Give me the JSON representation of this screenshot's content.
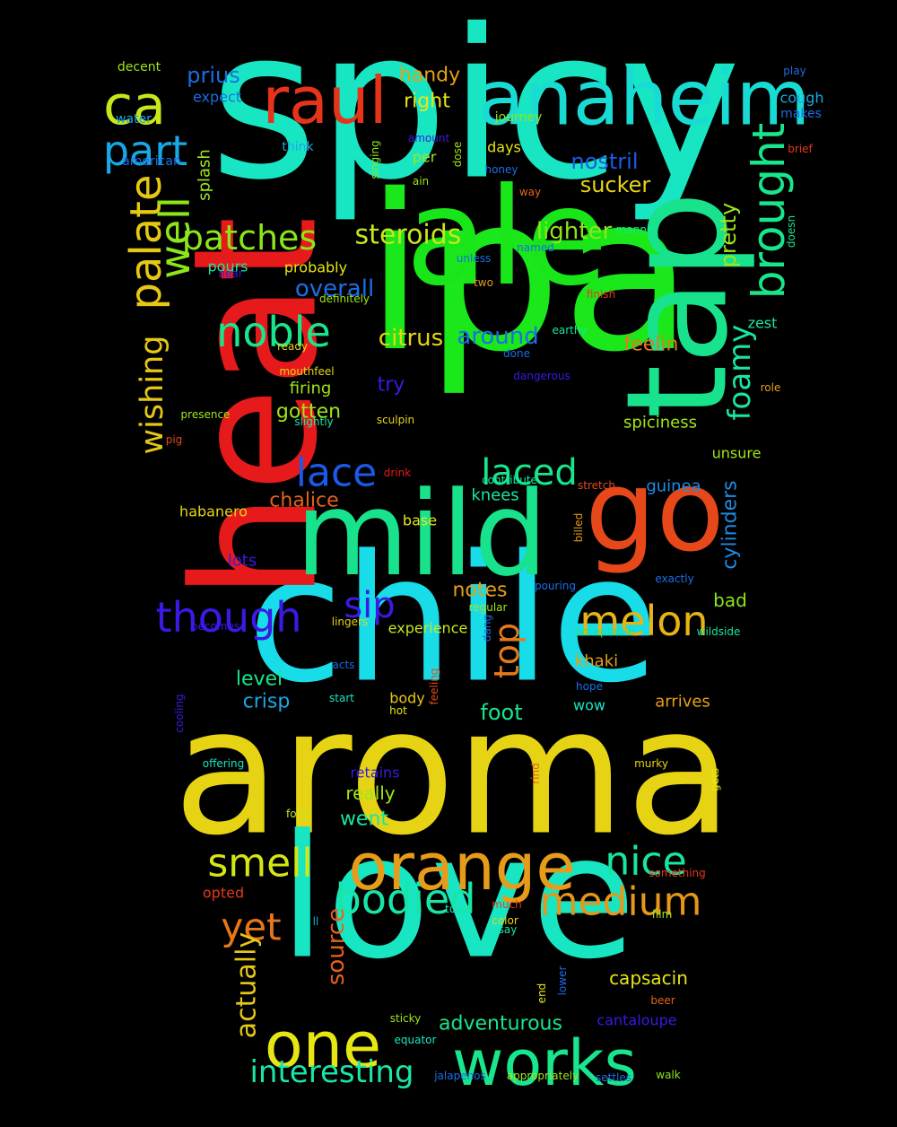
{
  "words": [
    {
      "text": "spicy",
      "color": "#18e6c3"
    },
    {
      "text": "ipa",
      "color": "#1ae81a"
    },
    {
      "text": "chile",
      "color": "#18dce8"
    },
    {
      "text": "aroma",
      "color": "#e6d414"
    },
    {
      "text": "love",
      "color": "#18e6c3"
    },
    {
      "text": "heat",
      "color": "#e61a1a"
    },
    {
      "text": "ale",
      "color": "#18e618"
    },
    {
      "text": "tap",
      "color": "#18e28c"
    },
    {
      "text": "mild",
      "color": "#18e28c"
    },
    {
      "text": "go",
      "color": "#e6481a"
    },
    {
      "text": "anaheim",
      "color": "#18dcd4"
    },
    {
      "text": "raul",
      "color": "#e6341a"
    },
    {
      "text": "ca",
      "color": "#c8e61a"
    },
    {
      "text": "orange",
      "color": "#e69c1a"
    },
    {
      "text": "works",
      "color": "#18e68c"
    },
    {
      "text": "one",
      "color": "#e6e614"
    },
    {
      "text": "brought",
      "color": "#18e68c"
    },
    {
      "text": "palate",
      "color": "#e6c814"
    },
    {
      "text": "well",
      "color": "#8ce618"
    },
    {
      "text": "part",
      "color": "#18a8e6"
    },
    {
      "text": "noble",
      "color": "#18e68c"
    },
    {
      "text": "though",
      "color": "#3a1ae6"
    },
    {
      "text": "melon",
      "color": "#e6b414"
    },
    {
      "text": "bodied",
      "color": "#18e6a8"
    },
    {
      "text": "medium",
      "color": "#e6961a"
    },
    {
      "text": "smell",
      "color": "#d4e614"
    },
    {
      "text": "nice",
      "color": "#18e6a0"
    },
    {
      "text": "lace",
      "color": "#1a5ae6"
    },
    {
      "text": "laced",
      "color": "#18e68c"
    },
    {
      "text": "patches",
      "color": "#8ce618"
    },
    {
      "text": "wishing",
      "color": "#e6c814"
    },
    {
      "text": "foamy",
      "color": "#18e6a0"
    },
    {
      "text": "sip",
      "color": "#3a1ae6"
    },
    {
      "text": "top",
      "color": "#e67a1a"
    },
    {
      "text": "interesting",
      "color": "#18e6a8"
    },
    {
      "text": "yet",
      "color": "#e6781a"
    },
    {
      "text": "steroids",
      "color": "#c8e61a"
    },
    {
      "text": "actually",
      "color": "#e6c814"
    },
    {
      "text": "source",
      "color": "#e6621a"
    },
    {
      "text": "lighter",
      "color": "#8ce618"
    },
    {
      "text": "citrus",
      "color": "#e6d414"
    },
    {
      "text": "around",
      "color": "#1a6ee6"
    },
    {
      "text": "overall",
      "color": "#1a6ee6"
    },
    {
      "text": "sucker",
      "color": "#e6d414"
    },
    {
      "text": "nostril",
      "color": "#1a5ae6"
    },
    {
      "text": "pretty",
      "color": "#a0e618"
    },
    {
      "text": "cylinders",
      "color": "#1a8ce6"
    },
    {
      "text": "adventurous",
      "color": "#18e68c"
    },
    {
      "text": "capsacin",
      "color": "#e6e614"
    },
    {
      "text": "feelin",
      "color": "#e6781a"
    },
    {
      "text": "chalice",
      "color": "#e6621a"
    },
    {
      "text": "prius",
      "color": "#1a6ee6"
    },
    {
      "text": "handy",
      "color": "#e6a014"
    },
    {
      "text": "right",
      "color": "#e6e614"
    },
    {
      "text": "notes",
      "color": "#e6a014"
    },
    {
      "text": "gotten",
      "color": "#a0e618"
    },
    {
      "text": "went",
      "color": "#18e6a0"
    },
    {
      "text": "foot",
      "color": "#18e68c"
    },
    {
      "text": "crisp",
      "color": "#18a8e6"
    },
    {
      "text": "level",
      "color": "#18e68c"
    },
    {
      "text": "spiciness",
      "color": "#a0e618"
    },
    {
      "text": "try",
      "color": "#3a1ae6"
    },
    {
      "text": "really",
      "color": "#a0e618"
    },
    {
      "text": "arrives",
      "color": "#e6a014"
    },
    {
      "text": "bad",
      "color": "#8ce618"
    },
    {
      "text": "guinea",
      "color": "#1a8ce6"
    },
    {
      "text": "zest",
      "color": "#18e6a0"
    },
    {
      "text": "unsure",
      "color": "#a0e618"
    },
    {
      "text": "cough",
      "color": "#18a8e6"
    },
    {
      "text": "splash",
      "color": "#a0e618"
    },
    {
      "text": "knees",
      "color": "#18e6a0"
    },
    {
      "text": "khaki",
      "color": "#e6a014"
    },
    {
      "text": "lots",
      "color": "#3a1ae6"
    },
    {
      "text": "firing",
      "color": "#a0e618"
    },
    {
      "text": "base",
      "color": "#e6e614"
    },
    {
      "text": "cantaloupe",
      "color": "#3a1ae6"
    },
    {
      "text": "body",
      "color": "#e6c814"
    },
    {
      "text": "retains",
      "color": "#3a1ae6"
    },
    {
      "text": "per",
      "color": "#a0e618"
    },
    {
      "text": "days",
      "color": "#e6e614"
    },
    {
      "text": "experience",
      "color": "#c8e61a"
    },
    {
      "text": "expect",
      "color": "#1a6ee6"
    },
    {
      "text": "pours",
      "color": "#18e6a0"
    },
    {
      "text": "probably",
      "color": "#e6e614"
    },
    {
      "text": "habanero",
      "color": "#e6d414"
    },
    {
      "text": "opted",
      "color": "#e63a1a"
    },
    {
      "text": "wow",
      "color": "#18e6c3"
    },
    {
      "text": "makes",
      "color": "#1a6ee6"
    },
    {
      "text": "decent",
      "color": "#a0e618"
    },
    {
      "text": "water",
      "color": "#18a8e6"
    },
    {
      "text": "american",
      "color": "#1a6ee6"
    },
    {
      "text": "think",
      "color": "#18a8e6"
    },
    {
      "text": "journey",
      "color": "#8ce618"
    },
    {
      "text": "play",
      "color": "#1a6ee6"
    },
    {
      "text": "brief",
      "color": "#e63a1a"
    },
    {
      "text": "amount",
      "color": "#3a1ae6"
    },
    {
      "text": "honey",
      "color": "#1a6ee6"
    },
    {
      "text": "ain",
      "color": "#a0e618"
    },
    {
      "text": "way",
      "color": "#e6621a"
    },
    {
      "text": "manner",
      "color": "#18e68c"
    },
    {
      "text": "doesn",
      "color": "#18e68c"
    },
    {
      "text": "named",
      "color": "#1a6ee6"
    },
    {
      "text": "unless",
      "color": "#1a6ee6"
    },
    {
      "text": "near",
      "color": "#3a1ae6"
    },
    {
      "text": "two",
      "color": "#e69c1a"
    },
    {
      "text": "finish",
      "color": "#e63a1a"
    },
    {
      "text": "definitely",
      "color": "#a0e618"
    },
    {
      "text": "earthy",
      "color": "#18e6a0"
    },
    {
      "text": "ready",
      "color": "#e6d414"
    },
    {
      "text": "done",
      "color": "#1a6ee6"
    },
    {
      "text": "mouthfeel",
      "color": "#e6d414"
    },
    {
      "text": "dangerous",
      "color": "#3a1ae6"
    },
    {
      "text": "role",
      "color": "#e69c1a"
    },
    {
      "text": "presence",
      "color": "#a0e618"
    },
    {
      "text": "slightly",
      "color": "#18e6a0"
    },
    {
      "text": "sculpin",
      "color": "#e6d414"
    },
    {
      "text": "pig",
      "color": "#e6481a"
    },
    {
      "text": "drink",
      "color": "#e61a1a"
    },
    {
      "text": "contribute",
      "color": "#18e6a0"
    },
    {
      "text": "stretch",
      "color": "#e6481a"
    },
    {
      "text": "exactly",
      "color": "#1a6ee6"
    },
    {
      "text": "pouring",
      "color": "#1a6ee6"
    },
    {
      "text": "regular",
      "color": "#a0e618"
    },
    {
      "text": "becomes",
      "color": "#3a1ae6"
    },
    {
      "text": "lingers",
      "color": "#e6d414"
    },
    {
      "text": "acceptable",
      "color": "#18e68c"
    },
    {
      "text": "wildside",
      "color": "#18e6a0"
    },
    {
      "text": "acts",
      "color": "#1a6ee6"
    },
    {
      "text": "hope",
      "color": "#1a6ee6"
    },
    {
      "text": "start",
      "color": "#18e6c3"
    },
    {
      "text": "hot",
      "color": "#e6e614"
    },
    {
      "text": "offering",
      "color": "#18e6c3"
    },
    {
      "text": "murky",
      "color": "#e6d414"
    },
    {
      "text": "form",
      "color": "#c8e61a"
    },
    {
      "text": "something",
      "color": "#e63a1a"
    },
    {
      "text": "much",
      "color": "#e63a1a"
    },
    {
      "text": "ton",
      "color": "#18e6c3"
    },
    {
      "text": "color",
      "color": "#e6d414"
    },
    {
      "text": "say",
      "color": "#18e6a0"
    },
    {
      "text": "film",
      "color": "#a0e618"
    },
    {
      "text": "beer",
      "color": "#e6621a"
    },
    {
      "text": "sticky",
      "color": "#a0e618"
    },
    {
      "text": "equator",
      "color": "#18e6c3"
    },
    {
      "text": "jalapenos",
      "color": "#1a6ee6"
    },
    {
      "text": "appropriately",
      "color": "#a0e618"
    },
    {
      "text": "settles",
      "color": "#1a6ee6"
    },
    {
      "text": "walk",
      "color": "#8ce618"
    },
    {
      "text": "singing",
      "color": "#8ce618"
    },
    {
      "text": "dose",
      "color": "#a0e618"
    },
    {
      "text": "billed",
      "color": "#e69c1a"
    },
    {
      "text": "dang",
      "color": "#1a6ee6"
    },
    {
      "text": "feeling",
      "color": "#e6481a"
    },
    {
      "text": "cooling",
      "color": "#3a1ae6"
    },
    {
      "text": "rind",
      "color": "#e6621a"
    },
    {
      "text": "gets",
      "color": "#e6e614"
    },
    {
      "text": "end",
      "color": "#e6e614"
    },
    {
      "text": "lower",
      "color": "#1a6ee6"
    },
    {
      "text": "ll",
      "color": "#18a8e6"
    }
  ]
}
